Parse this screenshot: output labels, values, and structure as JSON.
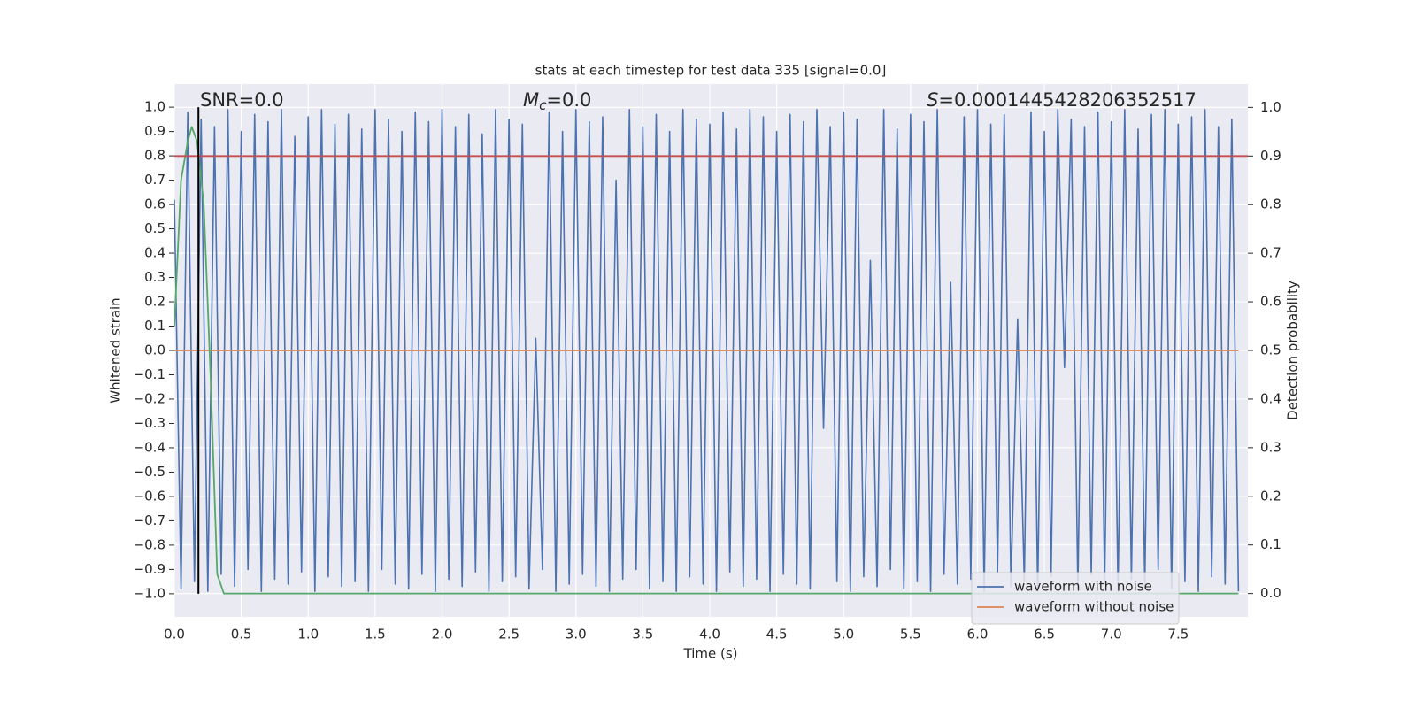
{
  "chart_data": {
    "type": "line",
    "title": "stats at each timestep for test data 335 [signal=0.0]",
    "xlabel": "Time (s)",
    "ylabel": "Whitened strain",
    "y2label": "Detection probability",
    "xlim": [
      0,
      8.02
    ],
    "ylim": [
      -1.095,
      1.095
    ],
    "y2lim": [
      -0.048,
      1.048
    ],
    "xticks": [
      {
        "value": 0,
        "label": "0.0"
      },
      0.5,
      {
        "value": 1,
        "label": "1.0"
      },
      1.5,
      {
        "value": 2,
        "label": "2.0"
      },
      2.5,
      {
        "value": 3,
        "label": "3.0"
      },
      3.5,
      {
        "value": 4,
        "label": "4.0"
      },
      4.5,
      {
        "value": 5,
        "label": "5.0"
      },
      5.5,
      {
        "value": 6,
        "label": "6.0"
      },
      6.5,
      {
        "value": 7,
        "label": "7.0"
      },
      7.5
    ],
    "yticks": [
      {
        "value": -1,
        "label": "−1.0"
      },
      {
        "value": -0.9,
        "label": "−0.9"
      },
      {
        "value": -0.8,
        "label": "−0.8"
      },
      {
        "value": -0.7,
        "label": "−0.7"
      },
      {
        "value": -0.6,
        "label": "−0.6"
      },
      {
        "value": -0.5,
        "label": "−0.5"
      },
      {
        "value": -0.4,
        "label": "−0.4"
      },
      {
        "value": -0.3,
        "label": "−0.3"
      },
      {
        "value": -0.2,
        "label": "−0.2"
      },
      {
        "value": -0.1,
        "label": "−0.1"
      },
      {
        "value": 0,
        "label": "0.0"
      },
      0.1,
      0.2,
      0.3,
      0.4,
      0.5,
      0.6,
      0.7,
      0.8,
      0.9,
      {
        "value": 1,
        "label": "1.0"
      }
    ],
    "y2ticks": [
      {
        "value": 0,
        "label": "0.0"
      },
      0.1,
      0.2,
      0.3,
      0.4,
      0.5,
      0.6,
      0.7,
      0.8,
      0.9,
      {
        "value": 1,
        "label": "1.0"
      }
    ],
    "grid": true,
    "legend": "lower right",
    "series": [
      {
        "name": "waveform with noise",
        "color": "#4c72b0",
        "x": [
          0,
          0.05,
          0.1,
          0.15,
          0.2,
          0.25,
          0.3,
          0.35,
          0.4,
          0.45,
          0.5,
          0.55,
          0.6,
          0.65,
          0.7,
          0.75,
          0.8,
          0.85,
          0.9,
          0.95,
          1,
          1.05,
          1.1,
          1.15,
          1.2,
          1.25,
          1.3,
          1.35,
          1.4,
          1.45,
          1.5,
          1.55,
          1.6,
          1.65,
          1.7,
          1.75,
          1.8,
          1.85,
          1.9,
          1.95,
          2,
          2.05,
          2.1,
          2.15,
          2.2,
          2.25,
          2.3,
          2.35,
          2.4,
          2.45,
          2.5,
          2.55,
          2.6,
          2.65,
          2.7,
          2.75,
          2.8,
          2.85,
          2.9,
          2.95,
          3,
          3.05,
          3.1,
          3.15,
          3.2,
          3.25,
          3.3,
          3.35,
          3.4,
          3.45,
          3.5,
          3.55,
          3.6,
          3.65,
          3.7,
          3.75,
          3.8,
          3.85,
          3.9,
          3.95,
          4,
          4.05,
          4.1,
          4.15,
          4.2,
          4.25,
          4.3,
          4.35,
          4.4,
          4.45,
          4.5,
          4.55,
          4.6,
          4.65,
          4.7,
          4.75,
          4.8,
          4.85,
          4.9,
          4.95,
          5,
          5.05,
          5.1,
          5.15,
          5.2,
          5.25,
          5.3,
          5.35,
          5.4,
          5.45,
          5.5,
          5.55,
          5.6,
          5.65,
          5.7,
          5.75,
          5.8,
          5.85,
          5.9,
          5.95,
          6,
          6.05,
          6.1,
          6.15,
          6.2,
          6.25,
          6.3,
          6.35,
          6.4,
          6.45,
          6.5,
          6.55,
          6.6,
          6.65,
          6.7,
          6.75,
          6.8,
          6.85,
          6.9,
          6.95,
          7,
          7.05,
          7.1,
          7.15,
          7.2,
          7.25,
          7.3,
          7.35,
          7.4,
          7.45,
          7.5,
          7.55,
          7.6,
          7.65,
          7.7,
          7.75,
          7.8,
          7.85,
          7.9,
          7.95
        ],
        "values": [
          0.62,
          -0.98,
          0.98,
          -0.95,
          0.95,
          -0.99,
          0.92,
          -0.92,
          0.99,
          -0.97,
          0.9,
          -0.9,
          0.97,
          -0.99,
          0.94,
          -0.94,
          0.99,
          -0.96,
          0.88,
          -0.91,
          0.96,
          -0.99,
          0.99,
          -0.93,
          0.93,
          -0.97,
          0.97,
          -0.95,
          0.91,
          -0.99,
          0.99,
          -0.9,
          0.95,
          -0.96,
          0.9,
          -0.98,
          0.98,
          -0.92,
          0.94,
          -0.99,
          0.99,
          -0.94,
          0.92,
          -0.97,
          0.97,
          -0.91,
          0.89,
          -0.99,
          0.99,
          -0.95,
          0.95,
          -0.93,
          0.93,
          -0.98,
          0.05,
          -0.9,
          0.98,
          -0.99,
          0.9,
          -0.96,
          0.99,
          -0.92,
          0.94,
          -0.97,
          0.96,
          -0.99,
          0.7,
          -0.94,
          0.99,
          -0.9,
          0.92,
          -0.98,
          0.97,
          -0.95,
          0.9,
          -0.99,
          0.99,
          -0.93,
          0.95,
          -0.96,
          0.93,
          -0.99,
          0.98,
          -0.91,
          0.91,
          -0.97,
          0.99,
          -0.94,
          0.96,
          -0.99,
          0.9,
          -0.92,
          0.97,
          -0.96,
          0.94,
          -0.98,
          0.99,
          -0.32,
          0.92,
          -0.95,
          0.98,
          -0.99,
          0.95,
          -0.93,
          0.37,
          -0.97,
          0.99,
          -0.9,
          0.91,
          -0.98,
          0.97,
          -0.95,
          0.94,
          -0.99,
          0.99,
          -0.92,
          0.28,
          -0.96,
          0.96,
          -0.94,
          0.99,
          -0.99,
          0.93,
          -0.91,
          0.97,
          -0.97,
          0.13,
          -0.95,
          0.98,
          -0.99,
          0.9,
          -0.93,
          0.99,
          -0.07,
          0.95,
          -0.98,
          0.92,
          -0.92,
          0.98,
          -0.96,
          0.94,
          -0.99,
          0.99,
          -0.94,
          0.91,
          -0.97,
          0.97,
          -0.9,
          0.99,
          -0.98,
          0.93,
          -0.95,
          0.96,
          -0.99,
          0.99,
          -0.93,
          0.92,
          -0.96,
          0.95,
          -0.99
        ]
      },
      {
        "name": "waveform without noise",
        "color": "#dd8452",
        "x": [
          0,
          7.95
        ],
        "values": [
          0,
          0
        ]
      },
      {
        "color": "#55a868",
        "axis": "y2",
        "x": [
          0,
          0.05,
          0.1,
          0.13,
          0.17,
          0.22,
          0.27,
          0.32,
          0.37,
          7.95
        ],
        "values": [
          0.55,
          0.85,
          0.93,
          0.96,
          0.93,
          0.8,
          0.45,
          0.04,
          0,
          0
        ]
      }
    ],
    "threshold": {
      "value": 0.9,
      "axis": "y2",
      "color": "#c44e52"
    },
    "vline": {
      "value": 0.18,
      "color": "#000000"
    },
    "annotations": [
      {
        "rest": "SNR=0.0"
      },
      {
        "italic": "M",
        "sub": "c",
        "rest": "=0.0"
      },
      {
        "italic": "S",
        "rest": "=0.0001445428206352517"
      }
    ]
  }
}
